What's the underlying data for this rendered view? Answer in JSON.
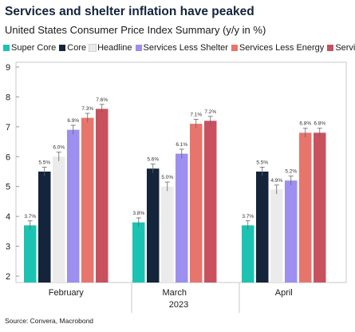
{
  "chart_data": {
    "type": "bar",
    "title": "Services and shelter inflation have peaked",
    "subtitle": "United States Consumer Price Index Summary (y/y in %)",
    "xlabel": "2023",
    "ylabel": "",
    "ylim": [
      2,
      9
    ],
    "yticks": [
      "2",
      "3",
      "4",
      "5",
      "6",
      "7",
      "8",
      "9"
    ],
    "categories": [
      "February",
      "March",
      "April"
    ],
    "series": [
      {
        "name": "Super Core",
        "color": "#1cc3b2",
        "values": [
          3.7,
          3.8,
          3.7
        ],
        "labels": [
          "3.7%",
          "3.8%",
          "3.7%"
        ]
      },
      {
        "name": "Core",
        "color": "#14243a",
        "values": [
          5.5,
          5.6,
          5.5
        ],
        "labels": [
          "5.5%",
          "5.6%",
          "5.5%"
        ]
      },
      {
        "name": "Headline",
        "color": "#ebebeb",
        "values": [
          6.0,
          5.0,
          4.9
        ],
        "labels": [
          "6.0%",
          "5.0%",
          "4.9%"
        ]
      },
      {
        "name": "Services Less Shelter",
        "color": "#9c8ff0",
        "values": [
          6.9,
          6.1,
          5.2
        ],
        "labels": [
          "6.9%",
          "6.1%",
          "5.2%"
        ]
      },
      {
        "name": "Services Less Energy",
        "color": "#e8756b",
        "values": [
          7.3,
          7.1,
          6.8
        ],
        "labels": [
          "7.3%",
          "7.1%",
          "6.8%"
        ]
      },
      {
        "name": "Services",
        "color": "#c9515e",
        "values": [
          7.6,
          7.2,
          6.8
        ],
        "labels": [
          "7.6%",
          "7.2%",
          "6.8%"
        ]
      }
    ],
    "error_bars": true,
    "grid": false,
    "legend_position": "top"
  },
  "source": "Source: Convera, Macrobond"
}
